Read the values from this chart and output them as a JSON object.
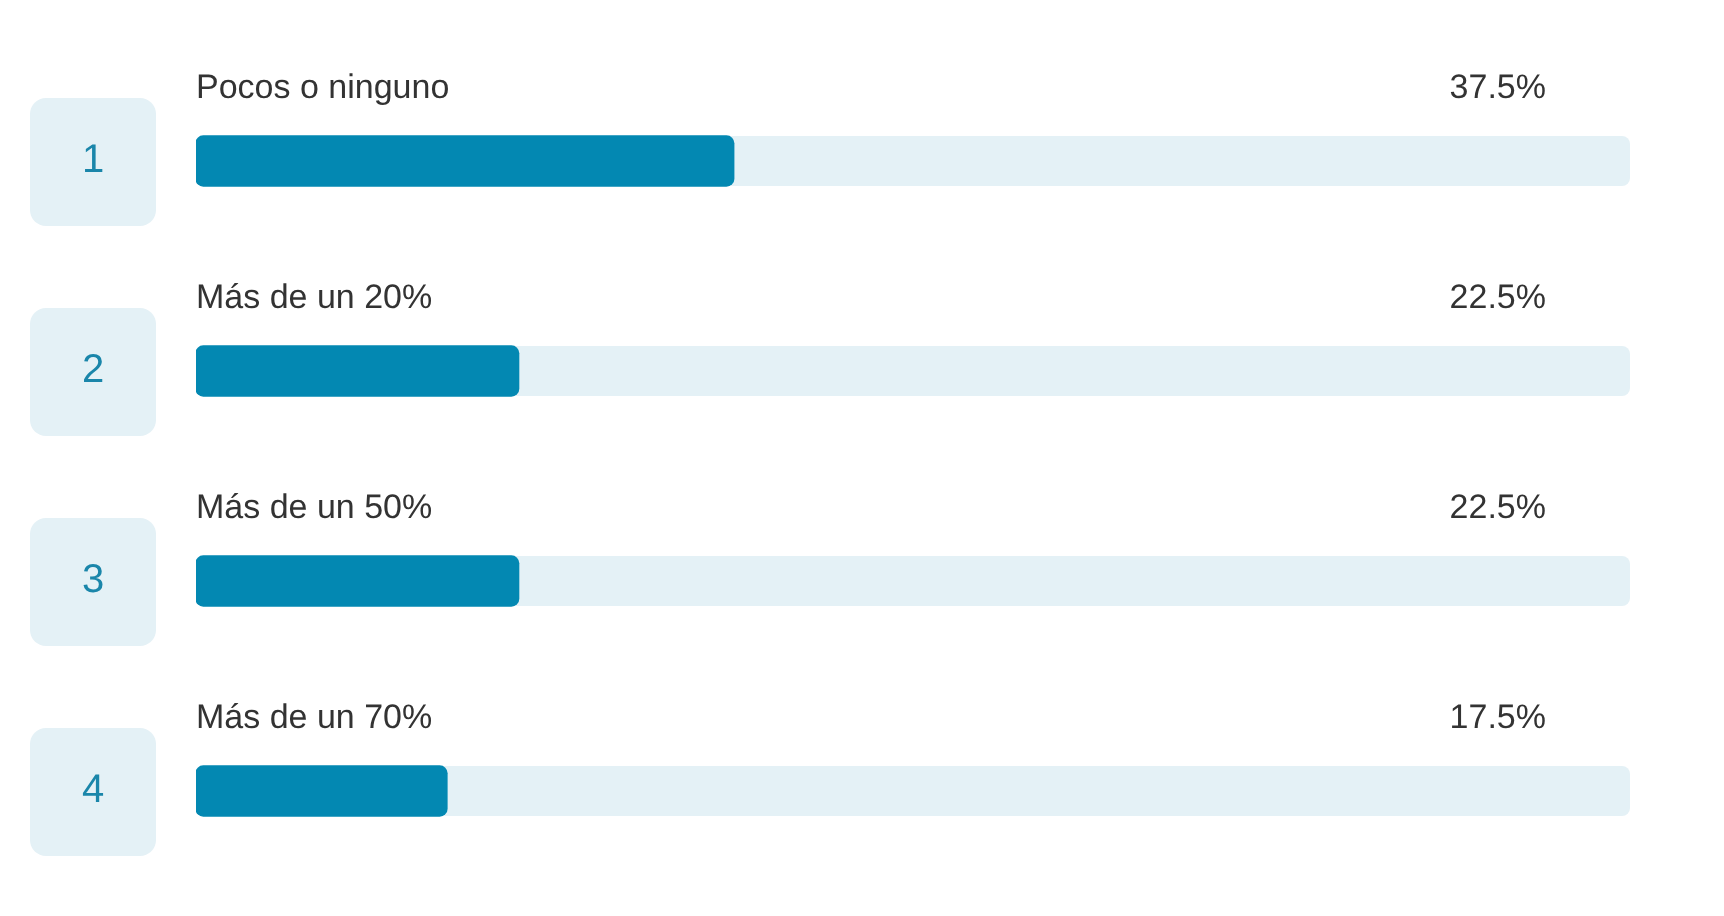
{
  "chart_data": {
    "type": "bar",
    "orientation": "horizontal",
    "categories": [
      "Pocos o ninguno",
      "Más de un 20%",
      "Más de un 50%",
      "Más de un 70%"
    ],
    "values": [
      37.5,
      22.5,
      22.5,
      17.5
    ],
    "value_labels": [
      "37.5%",
      "22.5%",
      "22.5%",
      "17.5%"
    ],
    "annotations": [
      "1",
      "2",
      "3",
      "4"
    ],
    "color": "#0388b2",
    "xlim": [
      0,
      100
    ]
  }
}
